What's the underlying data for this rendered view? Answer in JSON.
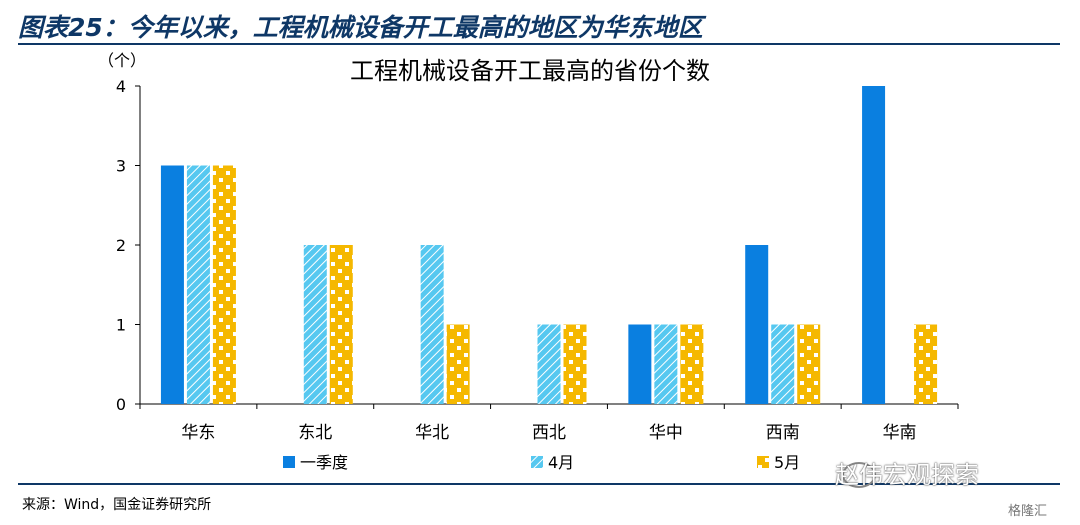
{
  "figure": {
    "title": "图表25：今年以来，工程机械设备开工最高的地区为华东地区",
    "source": "来源：Wind，国金证券研究所",
    "watermark": "赵伟宏观探索",
    "badge": "格隆汇"
  },
  "colors": {
    "q1": "#0a7fe0",
    "apr": "#56c8f0",
    "may": "#f5b800",
    "title_blue": "#0e3766"
  },
  "chart_data": {
    "type": "bar",
    "title": "工程机械设备开工最高的省份个数",
    "ylabel": "（个）",
    "xlabel": "",
    "ylim": [
      0,
      4
    ],
    "yticks": [
      "0",
      "1",
      "2",
      "3",
      "4"
    ],
    "categories": [
      "华东",
      "东北",
      "华北",
      "西北",
      "华中",
      "西南",
      "华南"
    ],
    "series": [
      {
        "name": "一季度",
        "values": [
          3,
          0,
          0,
          0,
          1,
          2,
          4
        ]
      },
      {
        "name": "4月",
        "values": [
          3,
          2,
          2,
          1,
          1,
          1,
          0
        ]
      },
      {
        "name": "5月",
        "values": [
          3,
          2,
          1,
          1,
          1,
          1,
          1
        ]
      }
    ],
    "grid": false,
    "legend": "bottom"
  }
}
